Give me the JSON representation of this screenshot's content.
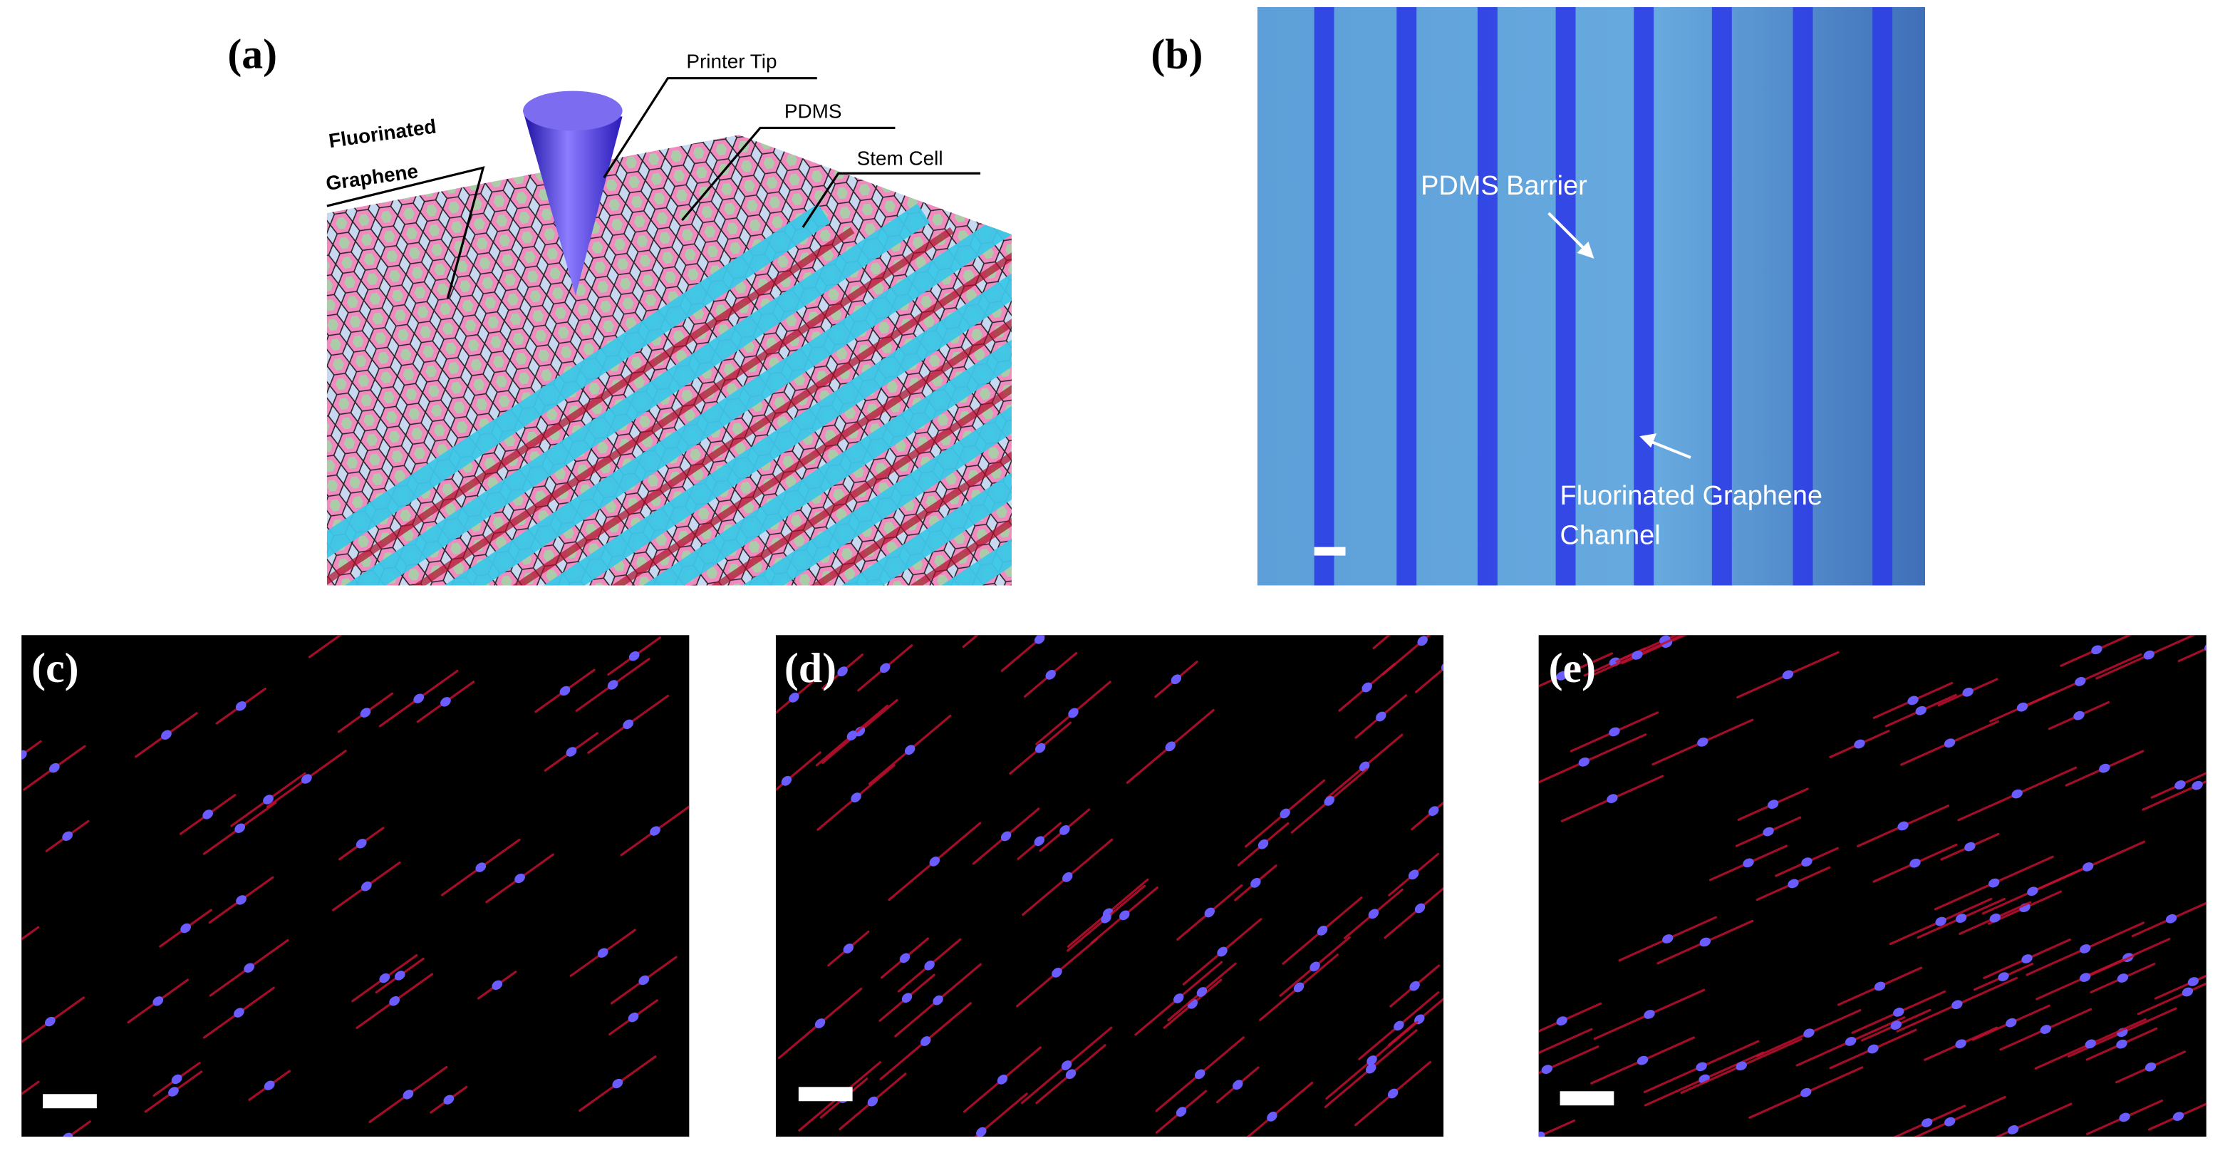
{
  "panel_a": {
    "label": "(a)",
    "printer_tip": "Printer Tip",
    "pdms": "PDMS",
    "stem_cell": "Stem Cell",
    "graphene_line1": "Fluorinated",
    "graphene_line2": "Graphene"
  },
  "panel_b": {
    "label": "(b)",
    "barrier": "PDMS Barrier",
    "channel_line1": "Fluorinated Graphene",
    "channel_line2": "Channel"
  },
  "panel_c": {
    "label": "(c)"
  },
  "panel_d": {
    "label": "(d)"
  },
  "panel_e": {
    "label": "(e)"
  }
}
